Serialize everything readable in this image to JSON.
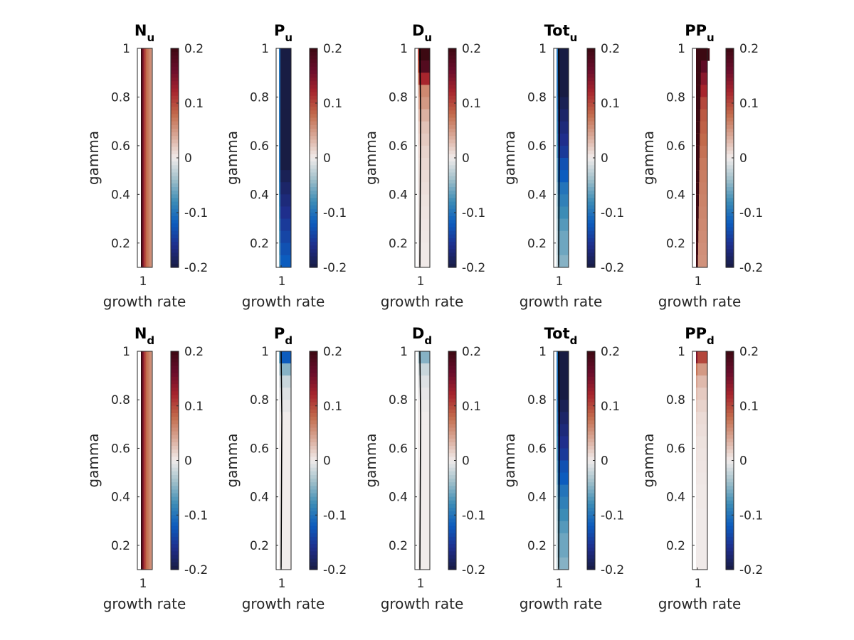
{
  "chart_data": {
    "type": "heatmap",
    "layout": "2x5 grid of subplots",
    "colormap": "balance (diverging: dark blue - white - dark red)",
    "colormap_stops": [
      "#181c43",
      "#1f2e8c",
      "#0c5cbe",
      "#3c8cb6",
      "#9fbfca",
      "#f1eceb",
      "#d9a897",
      "#c26a4b",
      "#a7252d",
      "#6a0d2c",
      "#3c0912"
    ],
    "clim": [
      -0.2,
      0.2
    ],
    "colorbar_ticks": [
      "0.2",
      "0.1",
      "0",
      "-0.1",
      "-0.2"
    ],
    "colorbar_tick_values": [
      0.2,
      0.1,
      0,
      -0.1,
      -0.2
    ],
    "ylim": [
      0.1,
      1.0
    ],
    "y_ticks": [
      "1",
      "0.8",
      "0.6",
      "0.4",
      "0.2"
    ],
    "y_tick_values": [
      1,
      0.8,
      0.6,
      0.4,
      0.2
    ],
    "x_ticks": [
      "1"
    ],
    "xlabel": "growth rate",
    "ylabel": "gamma",
    "gamma_rows": [
      1.0,
      0.95,
      0.9,
      0.85,
      0.8,
      0.75,
      0.7,
      0.65,
      0.6,
      0.55,
      0.5,
      0.45,
      0.4,
      0.35,
      0.3,
      0.25,
      0.2,
      0.15
    ],
    "panels": [
      {
        "title": "N",
        "sub": "u",
        "profile": "columns",
        "columns": [
          0.2,
          0.14,
          0.1,
          0.08,
          0.07,
          0.06,
          0.05
        ],
        "col_start": 0.2
      },
      {
        "title": "P",
        "sub": "u",
        "profile": "rows",
        "values": [
          -0.2,
          -0.2,
          -0.2,
          -0.2,
          -0.2,
          -0.2,
          -0.2,
          -0.2,
          -0.2,
          -0.2,
          -0.19,
          -0.18,
          -0.17,
          -0.16,
          -0.15,
          -0.14,
          -0.13,
          -0.12
        ]
      },
      {
        "title": "D",
        "sub": "u",
        "profile": "rows",
        "values": [
          0.2,
          0.18,
          0.12,
          0.06,
          0.05,
          0.035,
          0.025,
          0.02,
          0.015,
          0.012,
          0.01,
          0.008,
          0.006,
          0.005,
          0.004,
          0.003,
          0.002,
          0.002
        ]
      },
      {
        "title": "Tot",
        "sub": "u",
        "profile": "rows",
        "values": [
          -0.2,
          -0.2,
          -0.2,
          -0.2,
          -0.19,
          -0.18,
          -0.17,
          -0.16,
          -0.15,
          -0.13,
          -0.12,
          -0.1,
          -0.09,
          -0.08,
          -0.07,
          -0.06,
          -0.06,
          -0.05
        ]
      },
      {
        "title": "PP",
        "sub": "u",
        "profile": "wedge",
        "values": [
          0.2,
          0.17,
          0.14,
          0.12,
          0.1,
          0.09,
          0.085,
          0.08,
          0.075,
          0.07,
          0.068,
          0.066,
          0.064,
          0.062,
          0.06,
          0.058,
          0.056,
          0.054
        ]
      },
      {
        "title": "N",
        "sub": "d",
        "profile": "columns",
        "columns": [
          0.2,
          0.14,
          0.1,
          0.08,
          0.07,
          0.06,
          0.05
        ],
        "col_start": 0.2
      },
      {
        "title": "P",
        "sub": "d",
        "profile": "rows",
        "values": [
          -0.12,
          -0.05,
          -0.02,
          -0.01,
          -0.005,
          0,
          0,
          0,
          0,
          0,
          0,
          0,
          0,
          0,
          0,
          0,
          0,
          0
        ]
      },
      {
        "title": "D",
        "sub": "d",
        "profile": "rows",
        "values": [
          -0.05,
          -0.02,
          -0.01,
          -0.005,
          -0.002,
          0,
          0,
          0,
          0,
          0,
          0,
          0,
          0,
          0,
          0,
          0,
          0,
          0
        ]
      },
      {
        "title": "Tot",
        "sub": "d",
        "profile": "rows",
        "values": [
          -0.2,
          -0.2,
          -0.2,
          -0.2,
          -0.19,
          -0.18,
          -0.17,
          -0.16,
          -0.15,
          -0.13,
          -0.12,
          -0.1,
          -0.09,
          -0.08,
          -0.07,
          -0.06,
          -0.06,
          -0.05
        ]
      },
      {
        "title": "PP",
        "sub": "d",
        "profile": "wedge",
        "values": [
          0.1,
          0.05,
          0.03,
          0.02,
          0.015,
          0.01,
          0.008,
          0.006,
          0.005,
          0.004,
          0.003,
          0.002,
          0.002,
          0.001,
          0.001,
          0.001,
          0.001,
          0.001
        ]
      }
    ]
  }
}
